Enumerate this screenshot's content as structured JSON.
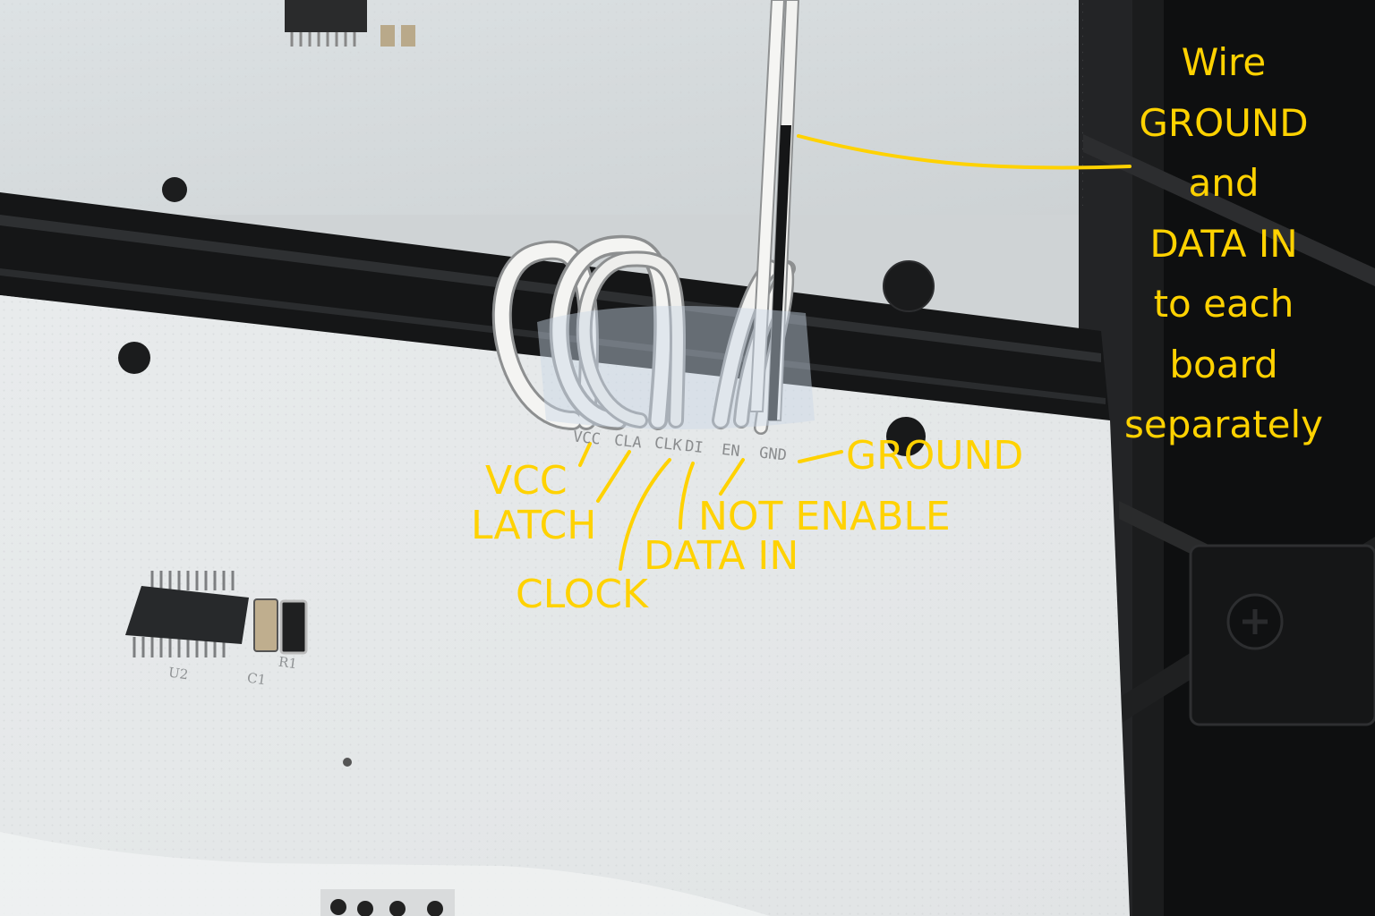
{
  "annotations": {
    "note_lines": [
      "Wire",
      "GROUND",
      "and",
      "DATA IN",
      "to each",
      "board",
      "separately"
    ],
    "ground": "GROUND",
    "vcc": "VCC",
    "latch": "LATCH",
    "not_enable": "NOT ENABLE",
    "data_in": "DATA IN",
    "clock": "CLOCK"
  },
  "silkscreen": {
    "pins": [
      "VCC",
      "CLA",
      "CLK",
      "DI",
      "EN",
      "GND"
    ],
    "refs": [
      "U2",
      "C1",
      "R1"
    ]
  },
  "colors": {
    "annotation": "#ffd200",
    "board": "#e6e9ea",
    "frame": "#141516",
    "wire": "#f3f3f1"
  }
}
